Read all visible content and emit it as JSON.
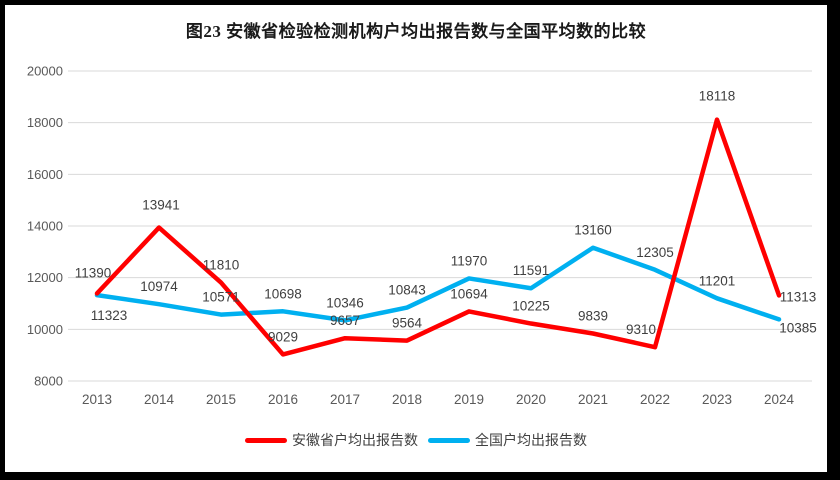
{
  "title": "图23 安徽省检验检测机构户均出报告数与全国平均数的比较",
  "colors": {
    "anhui": "#FF0000",
    "national": "#00B0F0",
    "grid": "#D9D9D9",
    "axis_text": "#595959",
    "data_label": "#404040",
    "frame": "#000000",
    "background": "#FFFFFF"
  },
  "legend": {
    "anhui_label": "安徽省户均出报告数",
    "national_label": "全国户均出报告数"
  },
  "chart_data": {
    "type": "line",
    "title": "图23 安徽省检验检测机构户均出报告数与全国平均数的比较",
    "categories": [
      "2013",
      "2014",
      "2015",
      "2016",
      "2017",
      "2018",
      "2019",
      "2020",
      "2021",
      "2022",
      "2023",
      "2024"
    ],
    "series": [
      {
        "name": "安徽省户均出报告数",
        "color": "#FF0000",
        "values": [
          11390,
          13941,
          11810,
          9029,
          9657,
          9564,
          10694,
          10225,
          9839,
          9310,
          18118,
          11313
        ]
      },
      {
        "name": "全国户均出报告数",
        "color": "#00B0F0",
        "values": [
          11323,
          10974,
          10571,
          10698,
          10346,
          10843,
          11970,
          11591,
          13160,
          12305,
          11201,
          10385
        ]
      }
    ],
    "xlabel": "",
    "ylabel": "",
    "ylim": [
      8000,
      20000
    ],
    "yticks": [
      8000,
      10000,
      12000,
      14000,
      16000,
      18000,
      20000
    ],
    "grid": true,
    "data_labels": true,
    "legend_position": "bottom"
  }
}
